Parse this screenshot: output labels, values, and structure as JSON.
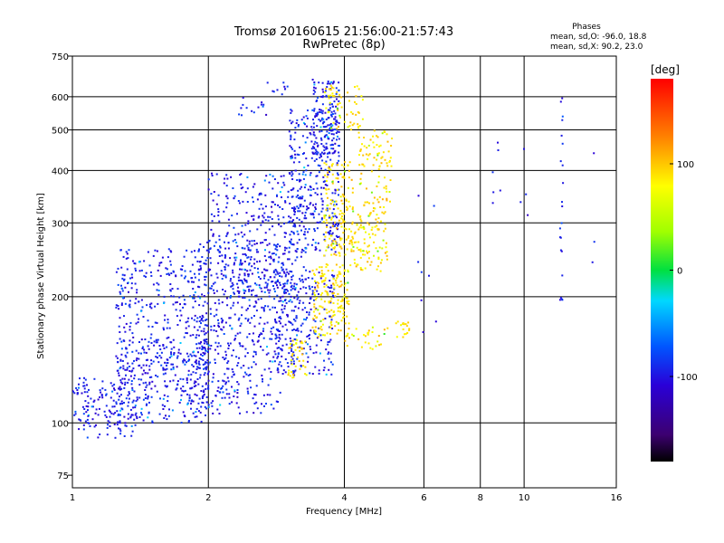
{
  "chart_data": {
    "type": "scatter",
    "title": "Tromsø 20160615 21:56:00-21:57:43",
    "subtitle": "RwPretec (8p)",
    "xlabel": "Frequency [MHz]",
    "ylabel": "Stationary phase Virtual Height [km]",
    "xscale": "log",
    "yscale": "log",
    "xlim": [
      1,
      16
    ],
    "ylim": [
      70,
      750
    ],
    "xticks": [
      1,
      2,
      4,
      6,
      8,
      10,
      16
    ],
    "yticks": [
      75,
      100,
      200,
      300,
      400,
      500,
      600,
      750
    ],
    "grid": true,
    "phases_box": {
      "heading": "Phases",
      "line_o": "mean, sd,O: -96.0, 18.8",
      "line_x": "mean, sd,X:  90.2, 23.0"
    },
    "colorbar": {
      "unit": "[deg]",
      "range": [
        -180,
        180
      ],
      "ticks": [
        100,
        0,
        -100
      ],
      "colormap": "rainbow-black-blue-cyan-green-yellow-red"
    },
    "point_color_value_o": -96.0,
    "point_color_value_x": 90.2,
    "clusters": [
      {
        "mode": "O",
        "f": [
          1.0,
          1.4
        ],
        "h": [
          92,
          128
        ],
        "n": 160
      },
      {
        "mode": "O",
        "f": [
          1.25,
          2.0
        ],
        "h": [
          100,
          160
        ],
        "n": 260
      },
      {
        "mode": "O",
        "f": [
          1.25,
          2.0
        ],
        "h": [
          130,
          260
        ],
        "n": 340
      },
      {
        "mode": "O",
        "f": [
          1.8,
          2.9
        ],
        "h": [
          105,
          150
        ],
        "n": 180
      },
      {
        "mode": "O",
        "f": [
          1.9,
          3.0
        ],
        "h": [
          150,
          270
        ],
        "n": 360
      },
      {
        "mode": "O",
        "f": [
          2.0,
          3.3
        ],
        "h": [
          200,
          400
        ],
        "n": 320
      },
      {
        "mode": "O",
        "f": [
          2.8,
          3.8
        ],
        "h": [
          130,
          230
        ],
        "n": 240
      },
      {
        "mode": "O",
        "f": [
          3.0,
          3.9
        ],
        "h": [
          250,
          560
        ],
        "n": 320
      },
      {
        "mode": "O",
        "f": [
          3.4,
          3.9
        ],
        "h": [
          420,
          660
        ],
        "n": 140
      },
      {
        "mode": "O",
        "f": [
          2.3,
          2.7
        ],
        "h": [
          530,
          600
        ],
        "n": 14
      },
      {
        "mode": "O",
        "f": [
          2.7,
          3.0
        ],
        "h": [
          600,
          650
        ],
        "n": 10
      },
      {
        "mode": "X",
        "f": [
          3.0,
          3.3
        ],
        "h": [
          128,
          160
        ],
        "n": 40
      },
      {
        "mode": "X",
        "f": [
          3.4,
          4.1
        ],
        "h": [
          160,
          240
        ],
        "n": 170
      },
      {
        "mode": "X",
        "f": [
          3.6,
          4.2
        ],
        "h": [
          250,
          420
        ],
        "n": 150
      },
      {
        "mode": "X",
        "f": [
          4.1,
          5.0
        ],
        "h": [
          230,
          330
        ],
        "n": 110
      },
      {
        "mode": "X",
        "f": [
          4.3,
          5.1
        ],
        "h": [
          330,
          500
        ],
        "n": 90
      },
      {
        "mode": "X",
        "f": [
          3.6,
          4.4
        ],
        "h": [
          500,
          640
        ],
        "n": 60
      },
      {
        "mode": "X",
        "f": [
          5.2,
          5.6
        ],
        "h": [
          160,
          175
        ],
        "n": 18
      },
      {
        "mode": "X",
        "f": [
          4.0,
          5.0
        ],
        "h": [
          150,
          170
        ],
        "n": 30
      },
      {
        "mode": "O",
        "f": [
          12.0,
          12.2
        ],
        "h": [
          190,
          640
        ],
        "n": 22
      },
      {
        "mode": "O",
        "f": [
          8.5,
          8.9
        ],
        "h": [
          330,
          560
        ],
        "n": 6
      },
      {
        "mode": "O",
        "f": [
          5.8,
          6.4
        ],
        "h": [
          160,
          420
        ],
        "n": 8
      },
      {
        "mode": "O",
        "f": [
          9.8,
          10.2
        ],
        "h": [
          290,
          480
        ],
        "n": 4
      },
      {
        "mode": "O",
        "f": [
          14.0,
          14.6
        ],
        "h": [
          230,
          600
        ],
        "n": 3
      }
    ]
  }
}
